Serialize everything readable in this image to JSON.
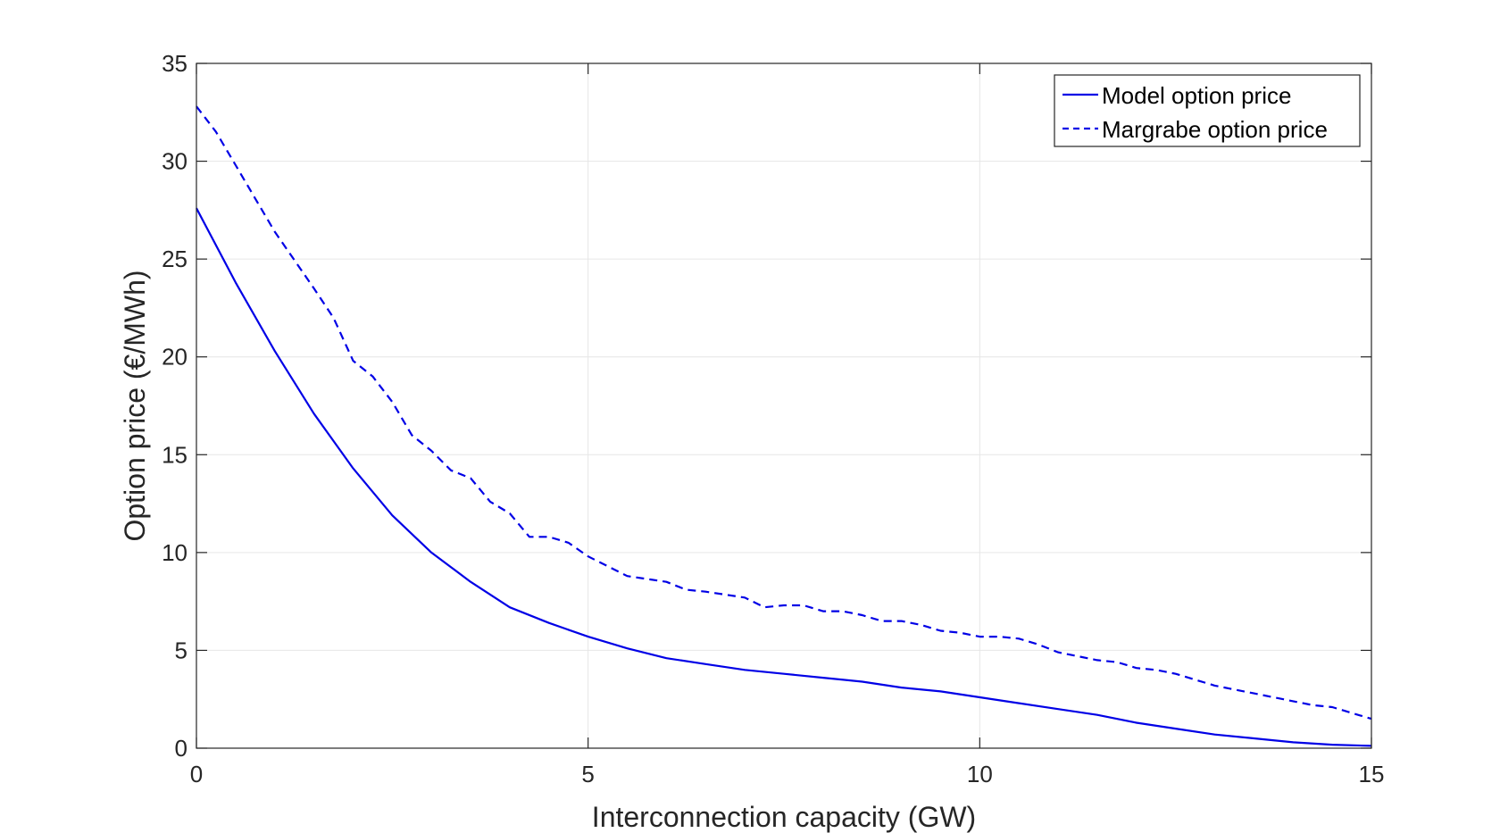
{
  "chart_data": {
    "type": "line",
    "title": "",
    "xlabel": "Interconnection capacity (GW)",
    "ylabel": "Option price (€/MWh)",
    "xlim": [
      0,
      15
    ],
    "ylim": [
      0,
      35
    ],
    "xticks": [
      0,
      5,
      10,
      15
    ],
    "yticks": [
      0,
      5,
      10,
      15,
      20,
      25,
      30,
      35
    ],
    "grid": true,
    "legend_position": "top-right",
    "series": [
      {
        "name": "Model option price",
        "style": "solid",
        "color": "#0000e6",
        "x": [
          0,
          0.5,
          1,
          1.5,
          2,
          2.5,
          3,
          3.5,
          4,
          4.5,
          5,
          5.5,
          6,
          6.5,
          7,
          7.5,
          8,
          8.5,
          9,
          9.5,
          10,
          10.5,
          11,
          11.5,
          12,
          12.5,
          13,
          13.5,
          14,
          14.5,
          15
        ],
        "y": [
          27.6,
          23.8,
          20.3,
          17.1,
          14.3,
          11.9,
          10.0,
          8.5,
          7.2,
          6.4,
          5.7,
          5.1,
          4.6,
          4.3,
          4.0,
          3.8,
          3.6,
          3.4,
          3.1,
          2.9,
          2.6,
          2.3,
          2.0,
          1.7,
          1.3,
          1.0,
          0.7,
          0.5,
          0.3,
          0.18,
          0.12
        ]
      },
      {
        "name": "Margrabe option price",
        "style": "dashed",
        "color": "#0000e6",
        "x": [
          0,
          0.25,
          0.5,
          1,
          1.5,
          1.75,
          2,
          2.25,
          2.5,
          2.75,
          3,
          3.25,
          3.5,
          3.75,
          4,
          4.25,
          4.5,
          4.75,
          5,
          5.25,
          5.5,
          6,
          6.25,
          6.5,
          7,
          7.25,
          7.5,
          7.75,
          8,
          8.25,
          8.5,
          8.75,
          9,
          9.25,
          9.5,
          9.75,
          10,
          10.25,
          10.5,
          10.75,
          11,
          11.25,
          11.5,
          11.75,
          12,
          12.25,
          12.5,
          12.75,
          13,
          13.25,
          13.5,
          13.75,
          14,
          14.25,
          14.5,
          14.75,
          15
        ],
        "y": [
          32.8,
          31.5,
          29.8,
          26.4,
          23.5,
          22.0,
          19.8,
          19.0,
          17.7,
          16.0,
          15.2,
          14.2,
          13.8,
          12.6,
          12.0,
          10.8,
          10.8,
          10.5,
          9.8,
          9.3,
          8.8,
          8.5,
          8.1,
          8.0,
          7.7,
          7.2,
          7.3,
          7.3,
          7.0,
          7.0,
          6.8,
          6.5,
          6.5,
          6.3,
          6.0,
          5.9,
          5.7,
          5.7,
          5.6,
          5.3,
          4.9,
          4.7,
          4.5,
          4.4,
          4.1,
          4.0,
          3.8,
          3.5,
          3.2,
          3.0,
          2.8,
          2.6,
          2.4,
          2.2,
          2.1,
          1.8,
          1.5
        ]
      }
    ]
  }
}
